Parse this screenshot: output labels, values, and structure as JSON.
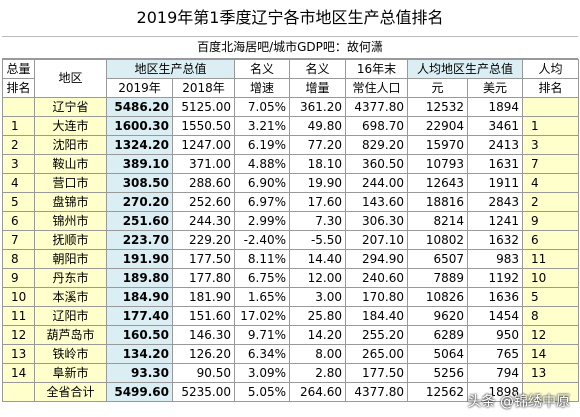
{
  "header": {
    "title": "2019年第1季度辽宁各市地区生产总值排名",
    "subtitle": "百度北海居吧/城市GDP吧：故何潇"
  },
  "table": {
    "head_top": [
      "总量",
      "地区",
      "地区生产总值",
      "名义",
      "名义",
      "16年末",
      "人均地区生产总值",
      "人均"
    ],
    "head_bottom": [
      "排名",
      "2019年",
      "2018年",
      "增速",
      "增量",
      "常住人口",
      "元",
      "美元",
      "排名"
    ],
    "rows": [
      [
        null,
        "辽宁省",
        "5486.20",
        "5125.00",
        "7.05%",
        "361.20",
        "4377.80",
        "12532",
        "1894",
        null
      ],
      [
        "1",
        "大连市",
        "1600.30",
        "1550.50",
        "3.21%",
        "49.80",
        "698.70",
        "22904",
        "3461",
        "1"
      ],
      [
        "2",
        "沈阳市",
        "1324.20",
        "1247.00",
        "6.19%",
        "77.20",
        "829.20",
        "15970",
        "2413",
        "3"
      ],
      [
        "3",
        "鞍山市",
        "389.10",
        "371.00",
        "4.88%",
        "18.10",
        "360.50",
        "10793",
        "1631",
        "7"
      ],
      [
        "4",
        "营口市",
        "308.50",
        "288.60",
        "6.90%",
        "19.90",
        "244.00",
        "12643",
        "1911",
        "4"
      ],
      [
        "5",
        "盘锦市",
        "270.20",
        "252.60",
        "6.97%",
        "17.60",
        "143.60",
        "18816",
        "2843",
        "2"
      ],
      [
        "6",
        "锦州市",
        "251.60",
        "244.30",
        "2.99%",
        "7.30",
        "306.30",
        "8214",
        "1241",
        "9"
      ],
      [
        "7",
        "抚顺市",
        "223.70",
        "229.20",
        "-2.40%",
        "-5.50",
        "207.10",
        "10802",
        "1632",
        "6"
      ],
      [
        "8",
        "朝阳市",
        "191.90",
        "177.50",
        "8.11%",
        "14.40",
        "294.90",
        "6507",
        "983",
        "11"
      ],
      [
        "9",
        "丹东市",
        "189.80",
        "177.80",
        "6.75%",
        "12.00",
        "240.60",
        "7889",
        "1192",
        "10"
      ],
      [
        "10",
        "本溪市",
        "184.90",
        "181.90",
        "1.65%",
        "3.00",
        "170.80",
        "10826",
        "1636",
        "5"
      ],
      [
        "11",
        "辽阳市",
        "177.40",
        "151.60",
        "17.02%",
        "25.80",
        "184.40",
        "9620",
        "1454",
        "8"
      ],
      [
        "12",
        "葫芦岛市",
        "160.50",
        "146.30",
        "9.71%",
        "14.20",
        "255.20",
        "6289",
        "950",
        "12"
      ],
      [
        "13",
        "铁岭市",
        "134.20",
        "126.20",
        "6.34%",
        "8.00",
        "265.00",
        "5064",
        "765",
        "14"
      ],
      [
        "14",
        "阜新市",
        "93.30",
        "90.50",
        "3.09%",
        "2.80",
        "177.50",
        "5256",
        "794",
        "13"
      ],
      [
        null,
        "全省合计",
        "5499.60",
        "5235.00",
        "5.05%",
        "264.60",
        "4377.80",
        "12562",
        "1898",
        null
      ]
    ]
  },
  "watermark": "头条 @锦绣中原"
}
